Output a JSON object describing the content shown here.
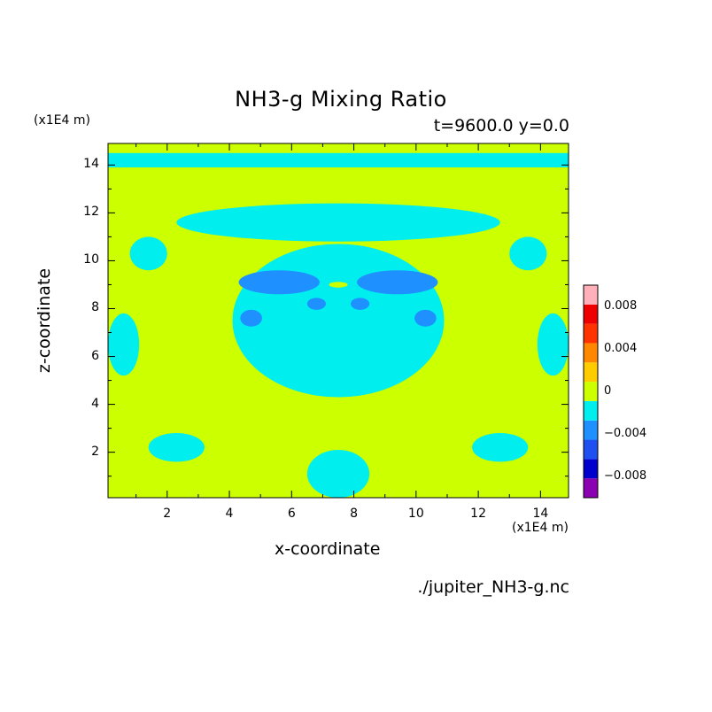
{
  "chart_data": {
    "type": "heatmap",
    "title": "NH3-g Mixing Ratio",
    "subtitle": "t=9600.0 y=0.0",
    "xlabel": "x-coordinate",
    "ylabel": "z-coordinate",
    "x_unit": "(x1E4 m)",
    "y_unit": "(x1E4 m)",
    "xlim": [
      0.1,
      14.9
    ],
    "ylim": [
      0.1,
      14.9
    ],
    "x_ticks": [
      2,
      4,
      6,
      8,
      10,
      12,
      14
    ],
    "y_ticks": [
      2,
      4,
      6,
      8,
      10,
      12,
      14
    ],
    "x_tick_labels": [
      "2",
      "4",
      "6",
      "8",
      "10",
      "12",
      "14"
    ],
    "y_tick_labels": [
      "2",
      "4",
      "6",
      "8",
      "10",
      "12",
      "14"
    ],
    "colorbar": {
      "levels": [
        -0.01,
        -0.008,
        -0.006,
        -0.004,
        -0.002,
        0,
        0.002,
        0.004,
        0.006,
        0.008,
        0.01
      ],
      "colors": [
        "#8b00b0",
        "#0000cc",
        "#1e4ff0",
        "#1e90ff",
        "#00eeee",
        "#ccff00",
        "#ffcc00",
        "#ff8800",
        "#ff3300",
        "#ee0000",
        "#ffb0b8"
      ],
      "tick_values": [
        0.008,
        0.004,
        0,
        -0.004,
        -0.008
      ],
      "tick_labels": [
        "0.008",
        "0.004",
        "0",
        "−0.004",
        "−0.008"
      ]
    },
    "field_regions": [
      {
        "level": -0.002,
        "kind": "rect",
        "x": [
          0.1,
          14.9
        ],
        "z": [
          13.9,
          14.5
        ]
      },
      {
        "level": -0.002,
        "kind": "ellipse",
        "cx": 7.5,
        "cz": 7.5,
        "rx": 3.4,
        "rz": 3.2
      },
      {
        "level": -0.002,
        "kind": "ellipse",
        "cx": 7.5,
        "cz": 11.6,
        "rx": 5.2,
        "rz": 0.8
      },
      {
        "level": -0.002,
        "kind": "ellipse",
        "cx": 7.5,
        "cz": 1.1,
        "rx": 1.0,
        "rz": 1.0
      },
      {
        "level": -0.002,
        "kind": "ellipse",
        "cx": 1.4,
        "cz": 10.3,
        "rx": 0.6,
        "rz": 0.7
      },
      {
        "level": -0.002,
        "kind": "ellipse",
        "cx": 13.6,
        "cz": 10.3,
        "rx": 0.6,
        "rz": 0.7
      },
      {
        "level": -0.002,
        "kind": "ellipse",
        "cx": 0.6,
        "cz": 6.5,
        "rx": 0.5,
        "rz": 1.3
      },
      {
        "level": -0.002,
        "kind": "ellipse",
        "cx": 14.4,
        "cz": 6.5,
        "rx": 0.5,
        "rz": 1.3
      },
      {
        "level": -0.002,
        "kind": "ellipse",
        "cx": 2.3,
        "cz": 2.2,
        "rx": 0.9,
        "rz": 0.6
      },
      {
        "level": -0.002,
        "kind": "ellipse",
        "cx": 12.7,
        "cz": 2.2,
        "rx": 0.9,
        "rz": 0.6
      },
      {
        "level": -0.004,
        "kind": "ellipse",
        "cx": 5.6,
        "cz": 9.1,
        "rx": 1.3,
        "rz": 0.5
      },
      {
        "level": -0.004,
        "kind": "ellipse",
        "cx": 9.4,
        "cz": 9.1,
        "rx": 1.3,
        "rz": 0.5
      },
      {
        "level": -0.004,
        "kind": "ellipse",
        "cx": 4.7,
        "cz": 7.6,
        "rx": 0.35,
        "rz": 0.35
      },
      {
        "level": -0.004,
        "kind": "ellipse",
        "cx": 10.3,
        "cz": 7.6,
        "rx": 0.35,
        "rz": 0.35
      },
      {
        "level": -0.004,
        "kind": "ellipse",
        "cx": 6.8,
        "cz": 8.2,
        "rx": 0.3,
        "rz": 0.25
      },
      {
        "level": -0.004,
        "kind": "ellipse",
        "cx": 8.2,
        "cz": 8.2,
        "rx": 0.3,
        "rz": 0.25
      },
      {
        "level": 0,
        "kind": "ellipse",
        "cx": 7.5,
        "cz": 9.0,
        "rx": 0.3,
        "rz": 0.12
      }
    ],
    "source_file": "./jupiter_NH3-g.nc"
  }
}
